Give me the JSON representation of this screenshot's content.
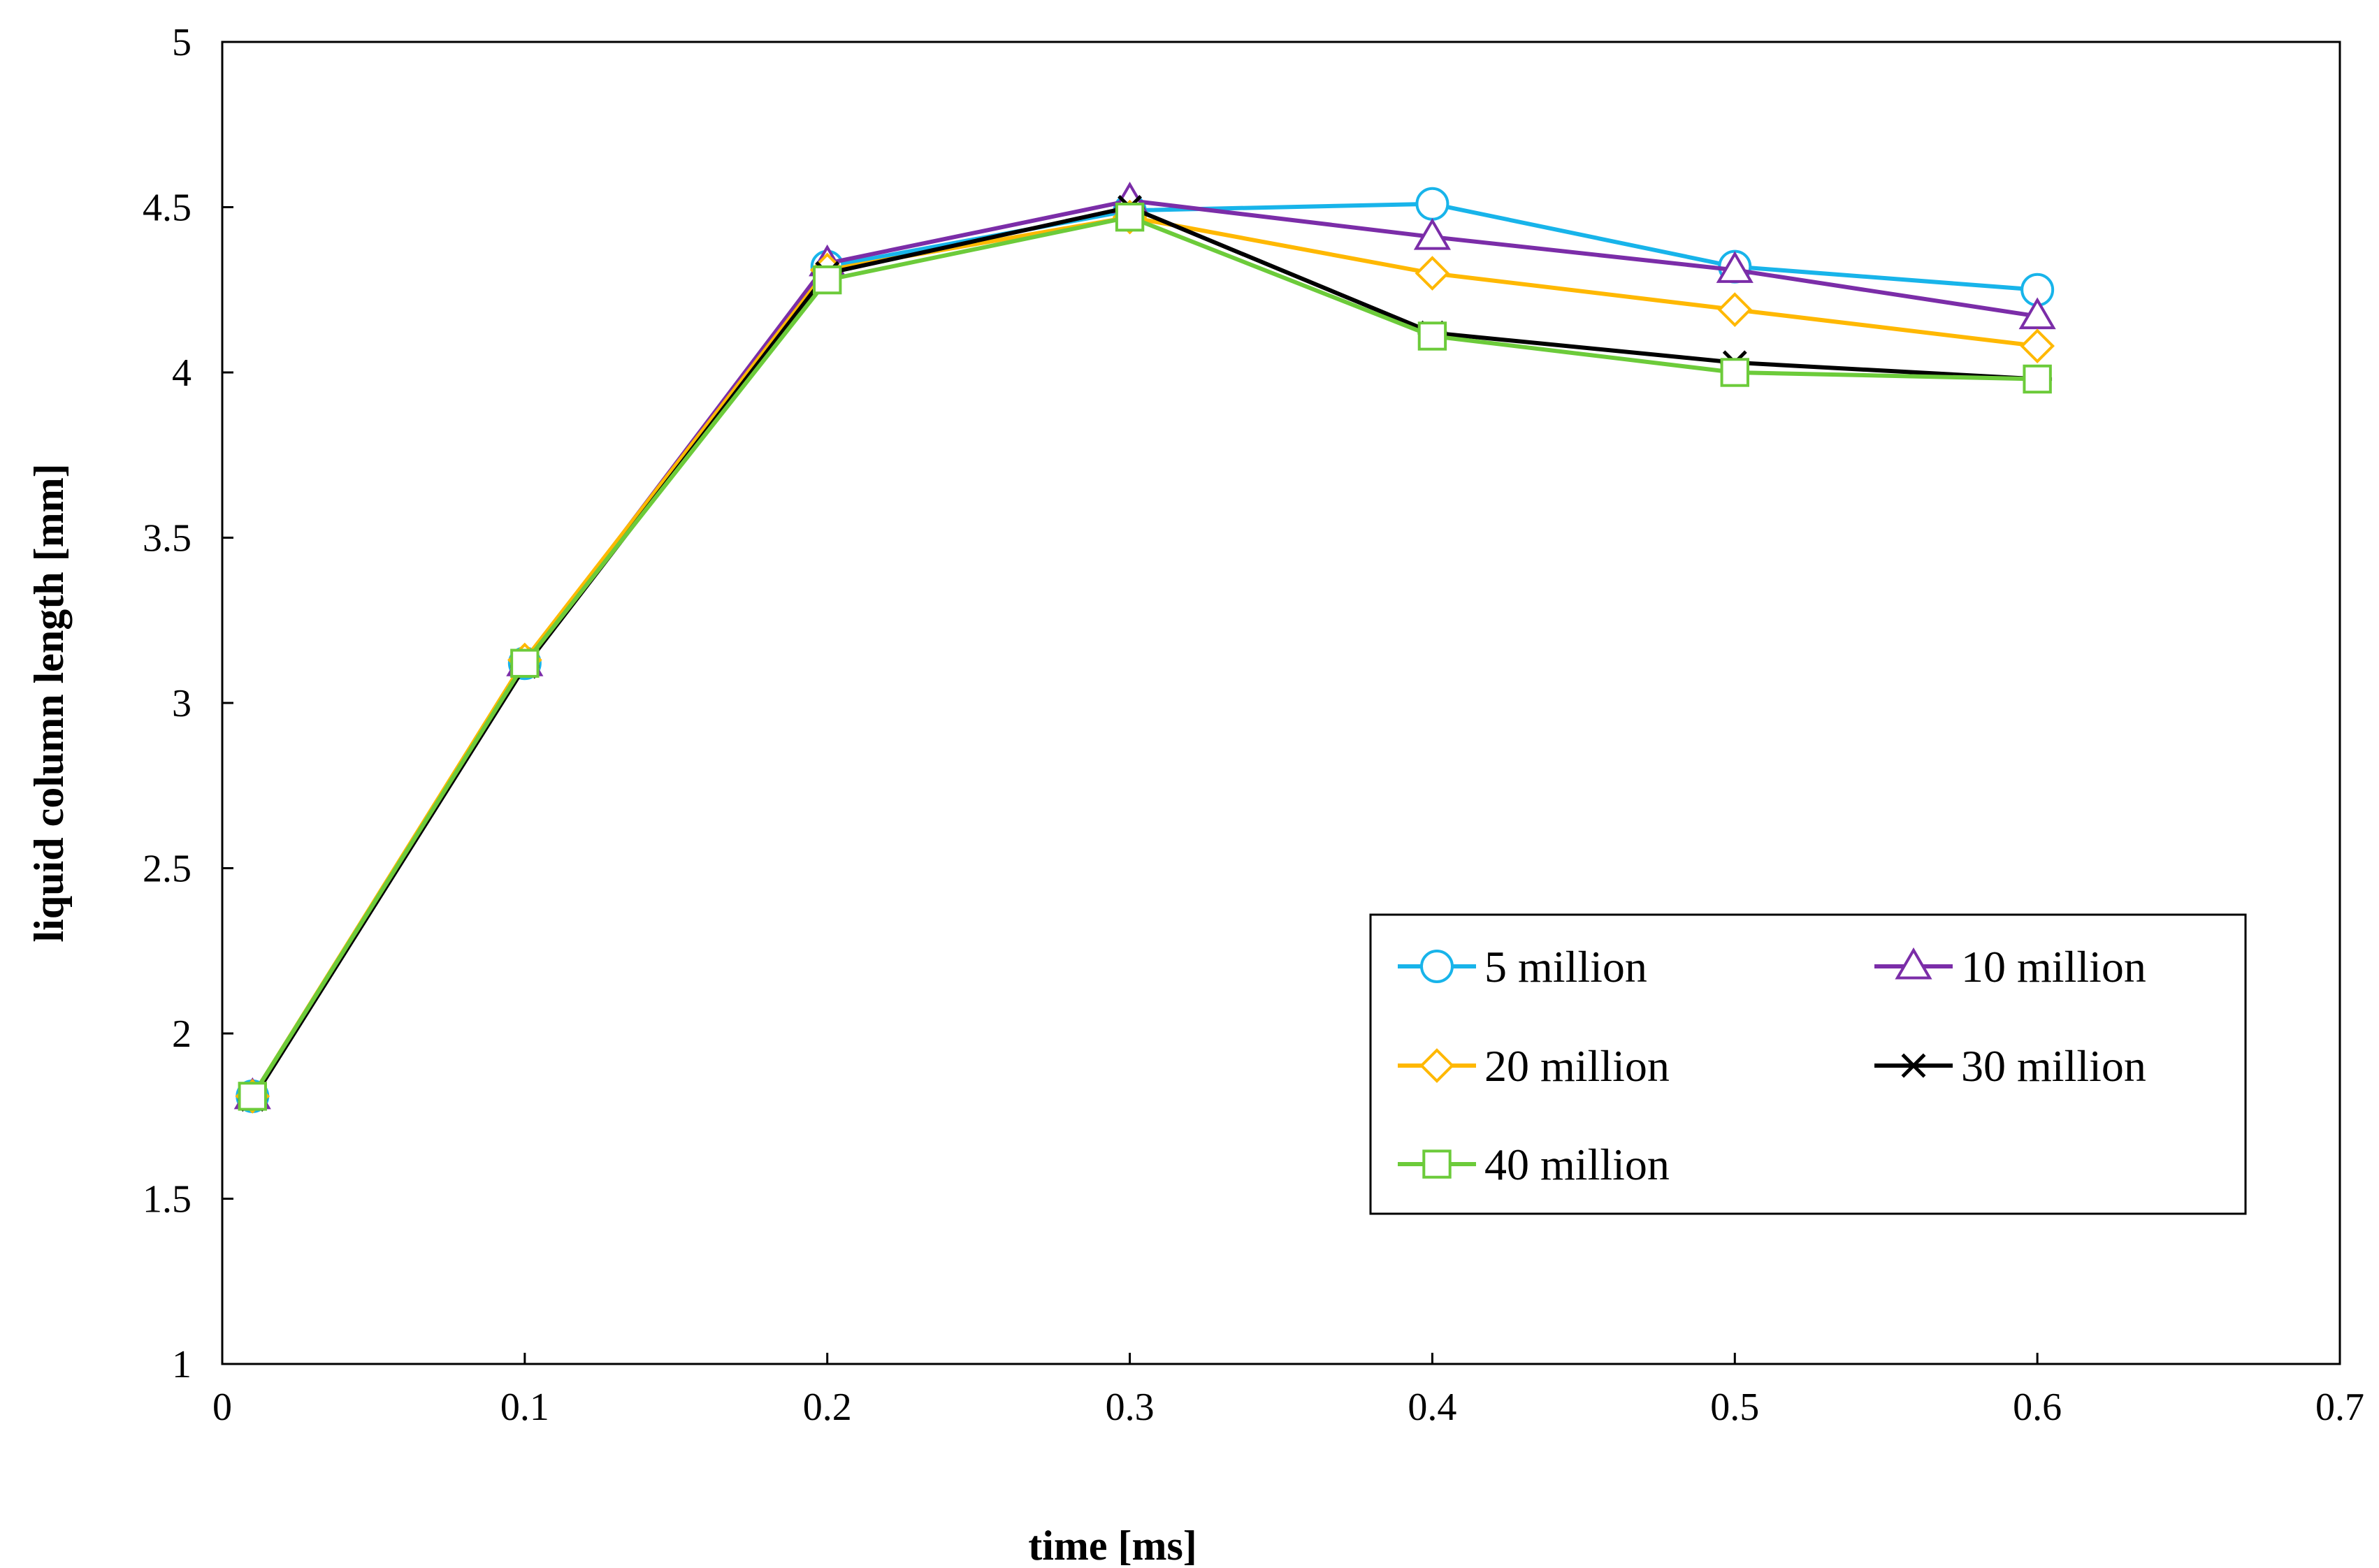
{
  "chart_data": {
    "type": "line",
    "title": "",
    "xlabel": "time [ms]",
    "ylabel": "liquid column length [mm]",
    "xlim": [
      0,
      0.7
    ],
    "ylim": [
      1,
      5
    ],
    "x_ticks": [
      0,
      0.1,
      0.2,
      0.3,
      0.4,
      0.5,
      0.6,
      0.7
    ],
    "x_tick_labels": [
      "0",
      "0.1",
      "0.2",
      "0.3",
      "0.4",
      "0.5",
      "0.6",
      "0.7"
    ],
    "y_ticks": [
      1,
      1.5,
      2,
      2.5,
      3,
      3.5,
      4,
      4.5,
      5
    ],
    "y_tick_labels": [
      "1",
      "1.5",
      "2",
      "2.5",
      "3",
      "3.5",
      "4",
      "4.5",
      "5"
    ],
    "grid": false,
    "legend_position": "bottom-right",
    "x": [
      0.01,
      0.1,
      0.2,
      0.3,
      0.4,
      0.5,
      0.6
    ],
    "series": [
      {
        "name": "5 million",
        "color": "#18B4EA",
        "marker": "circle",
        "values": [
          1.81,
          3.12,
          4.32,
          4.49,
          4.51,
          4.32,
          4.25
        ]
      },
      {
        "name": "10 million",
        "color": "#7B2DA8",
        "marker": "triangle",
        "values": [
          1.81,
          3.12,
          4.33,
          4.52,
          4.41,
          4.31,
          4.17
        ]
      },
      {
        "name": "20 million",
        "color": "#FFB800",
        "marker": "diamond",
        "values": [
          1.81,
          3.13,
          4.31,
          4.47,
          4.3,
          4.19,
          4.08
        ]
      },
      {
        "name": "30 million",
        "color": "#000000",
        "marker": "asterisk",
        "values": [
          1.8,
          3.11,
          4.3,
          4.5,
          4.12,
          4.03,
          3.98
        ]
      },
      {
        "name": "40 million",
        "color": "#6CCB3A",
        "marker": "square",
        "values": [
          1.81,
          3.12,
          4.28,
          4.47,
          4.11,
          4.0,
          3.98
        ]
      }
    ]
  }
}
